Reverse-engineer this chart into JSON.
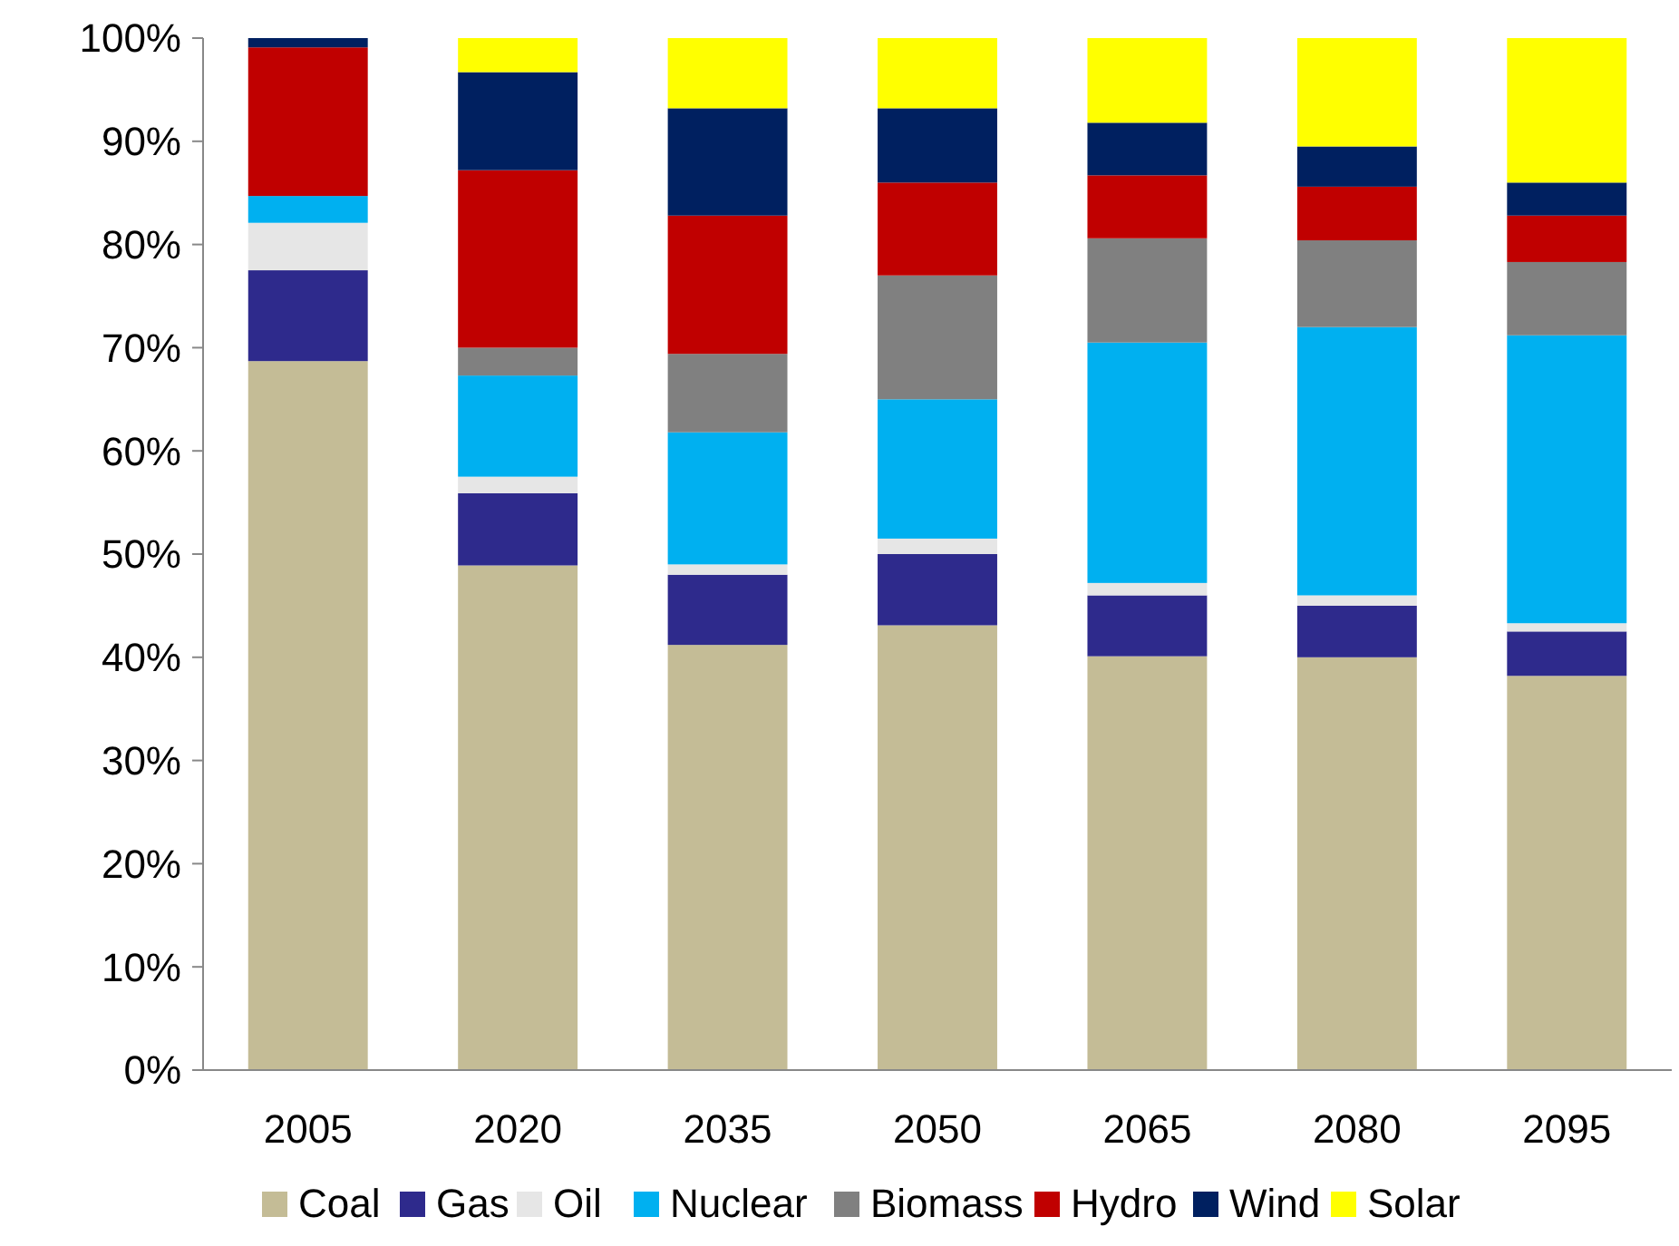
{
  "chart_data": {
    "type": "bar",
    "stacked": true,
    "categories": [
      "2005",
      "2020",
      "2035",
      "2050",
      "2065",
      "2080",
      "2095"
    ],
    "ylim": [
      0,
      100
    ],
    "yticks": [
      {
        "value": 0,
        "label": "0%"
      },
      {
        "value": 10,
        "label": "10%"
      },
      {
        "value": 20,
        "label": "20%"
      },
      {
        "value": 30,
        "label": "30%"
      },
      {
        "value": 40,
        "label": "40%"
      },
      {
        "value": 50,
        "label": "50%"
      },
      {
        "value": 60,
        "label": "60%"
      },
      {
        "value": 70,
        "label": "70%"
      },
      {
        "value": 80,
        "label": "80%"
      },
      {
        "value": 90,
        "label": "90%"
      },
      {
        "value": 100,
        "label": "100%"
      }
    ],
    "grid": false,
    "legend": "bottom",
    "series": [
      {
        "name": "Coal",
        "color": "#c4bc96",
        "values": [
          68.7,
          48.9,
          41.2,
          43.1,
          40.1,
          40.0,
          38.2
        ]
      },
      {
        "name": "Gas",
        "color": "#2e2a8c",
        "values": [
          8.8,
          7.0,
          6.8,
          6.9,
          5.9,
          5.0,
          4.3
        ]
      },
      {
        "name": "Oil",
        "color": "#e6e6e6",
        "values": [
          4.6,
          1.6,
          1.0,
          1.5,
          1.2,
          1.0,
          0.8
        ]
      },
      {
        "name": "Nuclear",
        "color": "#00b0f0",
        "values": [
          2.6,
          9.8,
          12.8,
          13.5,
          23.3,
          26.0,
          27.9
        ]
      },
      {
        "name": "Biomass",
        "color": "#808080",
        "values": [
          0,
          2.7,
          7.6,
          12.0,
          10.1,
          8.4,
          7.1
        ]
      },
      {
        "name": "Hydro",
        "color": "#c00000",
        "values": [
          14.4,
          17.2,
          13.4,
          9.0,
          6.1,
          5.2,
          4.5
        ]
      },
      {
        "name": "Wind",
        "color": "#002060",
        "values": [
          0.9,
          9.5,
          10.4,
          7.2,
          5.1,
          3.9,
          3.2
        ]
      },
      {
        "name": "Solar",
        "color": "#ffff00",
        "values": [
          0,
          3.3,
          6.8,
          6.8,
          8.2,
          10.5,
          14.0
        ]
      }
    ]
  }
}
